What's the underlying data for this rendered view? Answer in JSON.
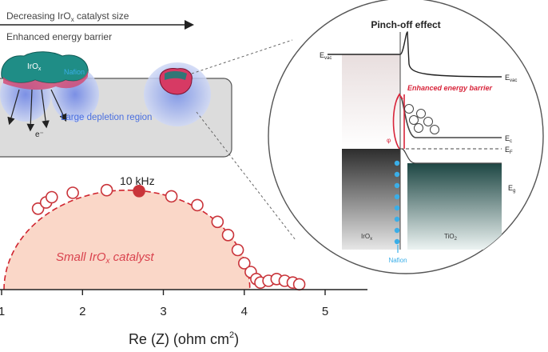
{
  "top_panel": {
    "arrow_label": "Decreasing IrO",
    "arrow_label_sub": "x",
    "arrow_label_tail": " catalyst size",
    "barrier_label": "Enhanced energy barrier",
    "catalyst_label": "IrO",
    "catalyst_label_sub": "x",
    "nafion_label": "Nafion",
    "depletion_label": "Large depletion region",
    "electron_label": "e⁻"
  },
  "inset": {
    "title": "Pinch-off effect",
    "evac_label": "E",
    "evac_sub": "vac",
    "evac_right_label": "E",
    "evac_right_sub": "vac",
    "barrier_text": "Enhanced energy barrier",
    "ec_label": "E",
    "ec_sub": "c",
    "ef_label": "E",
    "ef_sub": "F",
    "eg_label": "E",
    "eg_sub": "g",
    "phi_label": "φ",
    "left_material": "IrO",
    "left_material_sub": "x",
    "right_material": "TiO",
    "right_material_sub": "2",
    "nafion_label": "Nafion",
    "colors": {
      "barrier_red": "#d8243a",
      "nafion_blue": "#3aaee8",
      "circle_border": "#555555"
    }
  },
  "chart_data": {
    "type": "scatter",
    "xlabel": "Re (Z) (ohm cm²)",
    "xlabel_main": "Re (Z) (ohm cm",
    "xlabel_sup": "2",
    "xlabel_close": ")",
    "x_ticks": [
      "1",
      "2",
      "3",
      "4",
      "5"
    ],
    "xlim": [
      1.0,
      5.5
    ],
    "ylim": [
      0,
      1.4
    ],
    "fill_label": "Small IrO",
    "fill_label_sub": "x",
    "fill_label_tail": " catalyst",
    "highlight_label": "10 kHz",
    "highlight_point": {
      "x": 2.7,
      "y": 1.12
    },
    "points": [
      {
        "x": 1.45,
        "y": 0.92
      },
      {
        "x": 1.55,
        "y": 0.99
      },
      {
        "x": 1.62,
        "y": 1.05
      },
      {
        "x": 1.88,
        "y": 1.1
      },
      {
        "x": 2.3,
        "y": 1.13
      },
      {
        "x": 2.7,
        "y": 1.12
      },
      {
        "x": 3.1,
        "y": 1.06
      },
      {
        "x": 3.42,
        "y": 0.96
      },
      {
        "x": 3.67,
        "y": 0.77
      },
      {
        "x": 3.8,
        "y": 0.62
      },
      {
        "x": 3.92,
        "y": 0.45
      },
      {
        "x": 4.0,
        "y": 0.3
      },
      {
        "x": 4.08,
        "y": 0.2
      },
      {
        "x": 4.15,
        "y": 0.12
      },
      {
        "x": 4.2,
        "y": 0.08
      },
      {
        "x": 4.3,
        "y": 0.1
      },
      {
        "x": 4.4,
        "y": 0.12
      },
      {
        "x": 4.5,
        "y": 0.1
      },
      {
        "x": 4.6,
        "y": 0.08
      },
      {
        "x": 4.68,
        "y": 0.06
      }
    ],
    "colors": {
      "marker": "#c9343a",
      "fill": "#fad7c8",
      "fit_line": "#d0242f"
    }
  }
}
